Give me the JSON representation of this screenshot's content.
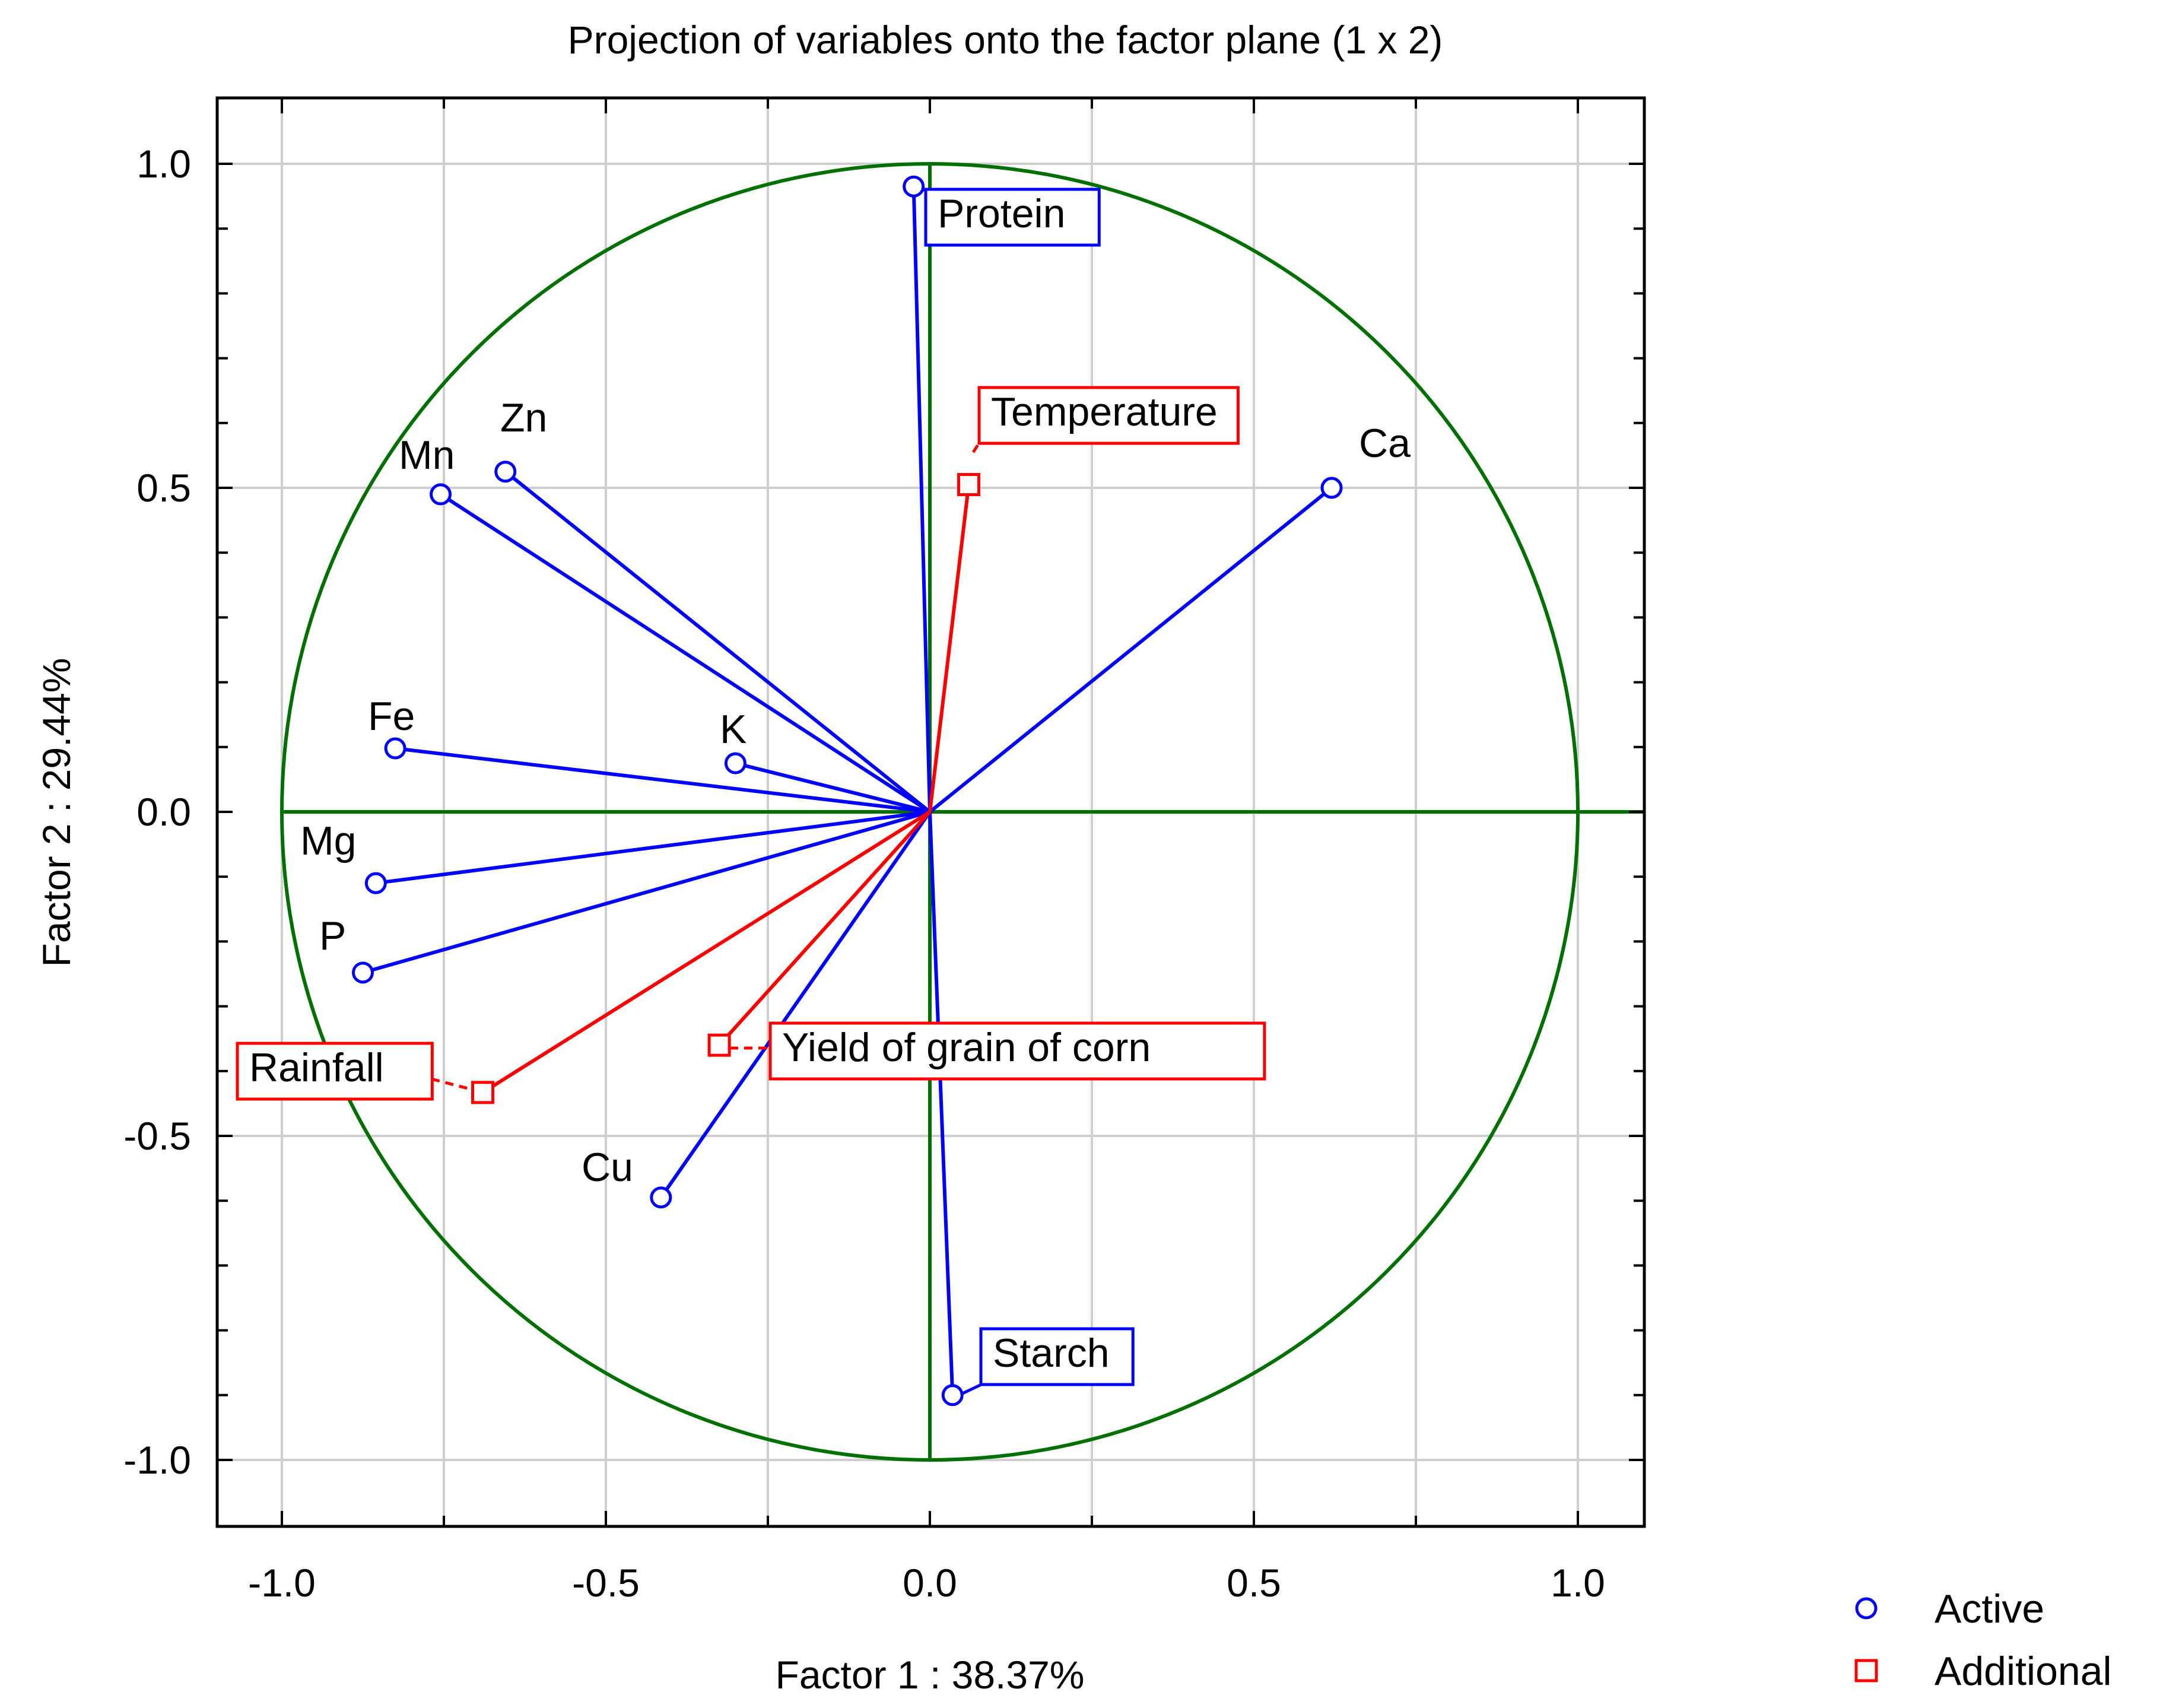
{
  "chart_data": {
    "type": "scatter",
    "title": "Projection of variables onto the factor plane (1 x 2)",
    "xlabel": "Factor 1 : 38.37%",
    "ylabel": "Factor 2 : 29.44%",
    "xlim": [
      -1.1,
      1.1
    ],
    "ylim": [
      -1.1,
      1.1
    ],
    "xticks": [
      -1.0,
      -0.5,
      0.0,
      0.5,
      1.0
    ],
    "yticks": [
      -1.0,
      -0.5,
      0.0,
      0.5,
      1.0
    ],
    "xtick_labels": [
      "-1.0",
      "-0.5",
      "0.0",
      "0.5",
      "1.0"
    ],
    "ytick_labels": [
      "-1.0",
      "-0.5",
      "0.0",
      "0.5",
      "1.0"
    ],
    "grid": true,
    "unit_circle": true,
    "legend": {
      "placement": "bottom-right, outside plot"
    },
    "colors": {
      "active": "#0000ff",
      "additional": "#ff0000",
      "circle": "#007000",
      "grid": "#cfcfcf",
      "axes": "#000000"
    },
    "series": [
      {
        "name": "Active",
        "marker": "circle",
        "color": "#0000ff",
        "points": [
          {
            "label": "Protein",
            "x": -0.025,
            "y": 0.965,
            "boxed": true
          },
          {
            "label": "Ca",
            "x": 0.62,
            "y": 0.5,
            "boxed": false
          },
          {
            "label": "Zn",
            "x": -0.655,
            "y": 0.525,
            "boxed": false
          },
          {
            "label": "Mn",
            "x": -0.755,
            "y": 0.49,
            "boxed": false
          },
          {
            "label": "Fe",
            "x": -0.825,
            "y": 0.098,
            "boxed": false
          },
          {
            "label": "K",
            "x": -0.3,
            "y": 0.075,
            "boxed": false
          },
          {
            "label": "Mg",
            "x": -0.855,
            "y": -0.11,
            "boxed": false
          },
          {
            "label": "P",
            "x": -0.875,
            "y": -0.248,
            "boxed": false
          },
          {
            "label": "Cu",
            "x": -0.415,
            "y": -0.595,
            "boxed": false
          },
          {
            "label": "Starch",
            "x": 0.035,
            "y": -0.9,
            "boxed": true
          }
        ]
      },
      {
        "name": "Additional",
        "marker": "square",
        "color": "#ff0000",
        "points": [
          {
            "label": "Temperature",
            "x": 0.06,
            "y": 0.505,
            "boxed": true
          },
          {
            "label": "Yield of grain of corn",
            "x": -0.325,
            "y": -0.36,
            "boxed": true
          },
          {
            "label": "Rainfall",
            "x": -0.69,
            "y": -0.433,
            "boxed": true
          }
        ]
      }
    ]
  }
}
